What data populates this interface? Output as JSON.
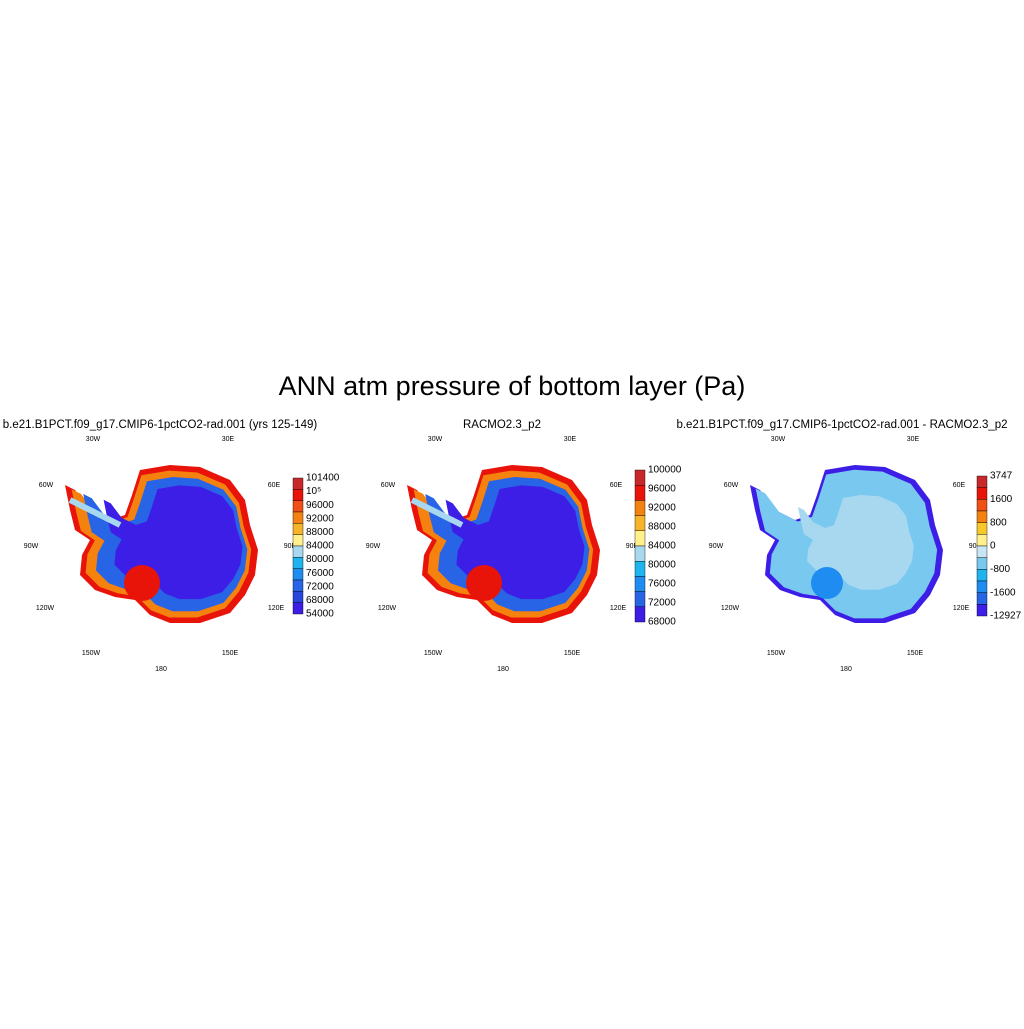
{
  "title": "ANN atm pressure of bottom layer (Pa)",
  "panels": [
    {
      "title": "b.e21.B1PCT.f09_g17.CMIP6-1pctCO2-rad.001 (yrs 125-149)",
      "lon_labels": [
        "30W",
        "30E",
        "60W",
        "60E",
        "90W",
        "90E",
        "120W",
        "120E",
        "150W",
        "150E",
        "180"
      ],
      "colorbar": {
        "labels": [
          "101400",
          "10⁵",
          "96000",
          "92000",
          "88000",
          "84000",
          "80000",
          "76000",
          "72000",
          "68000",
          "54000"
        ],
        "colors": [
          "#c8282a",
          "#e8140a",
          "#f05014",
          "#f5820f",
          "#f8b428",
          "#fff08c",
          "#a8d8f0",
          "#1eb4f0",
          "#1e8cf0",
          "#2864e6",
          "#2846dc",
          "#3c1ee6"
        ]
      }
    },
    {
      "title": "RACMO2.3_p2",
      "lon_labels": [
        "30W",
        "30E",
        "60W",
        "60E",
        "90W",
        "90E",
        "120W",
        "120E",
        "150W",
        "150E",
        "180"
      ],
      "colorbar": {
        "labels": [
          "100000",
          "96000",
          "92000",
          "88000",
          "84000",
          "80000",
          "76000",
          "72000",
          "68000"
        ],
        "colors": [
          "#c8282a",
          "#e8140a",
          "#f5820f",
          "#f8b428",
          "#fff08c",
          "#a8d8f0",
          "#1eb4f0",
          "#1e8cf0",
          "#2864e6",
          "#3c1ee6"
        ]
      }
    },
    {
      "title": "b.e21.B1PCT.f09_g17.CMIP6-1pctCO2-rad.001 - RACMO2.3_p2",
      "lon_labels": [
        "30W",
        "30E",
        "60W",
        "60E",
        "90W",
        "90E",
        "120W",
        "120E",
        "150W",
        "150E",
        "180"
      ],
      "colorbar": {
        "labels": [
          "3747",
          "1600",
          "800",
          "0",
          "-800",
          "-1600",
          "-12927"
        ],
        "colors": [
          "#c8282a",
          "#e8140a",
          "#f05014",
          "#f5820f",
          "#f8c828",
          "#fff08c",
          "#c8e6f5",
          "#78c8f0",
          "#1eb4f0",
          "#1e8cf0",
          "#2864e6",
          "#3c1ee6"
        ]
      }
    }
  ]
}
